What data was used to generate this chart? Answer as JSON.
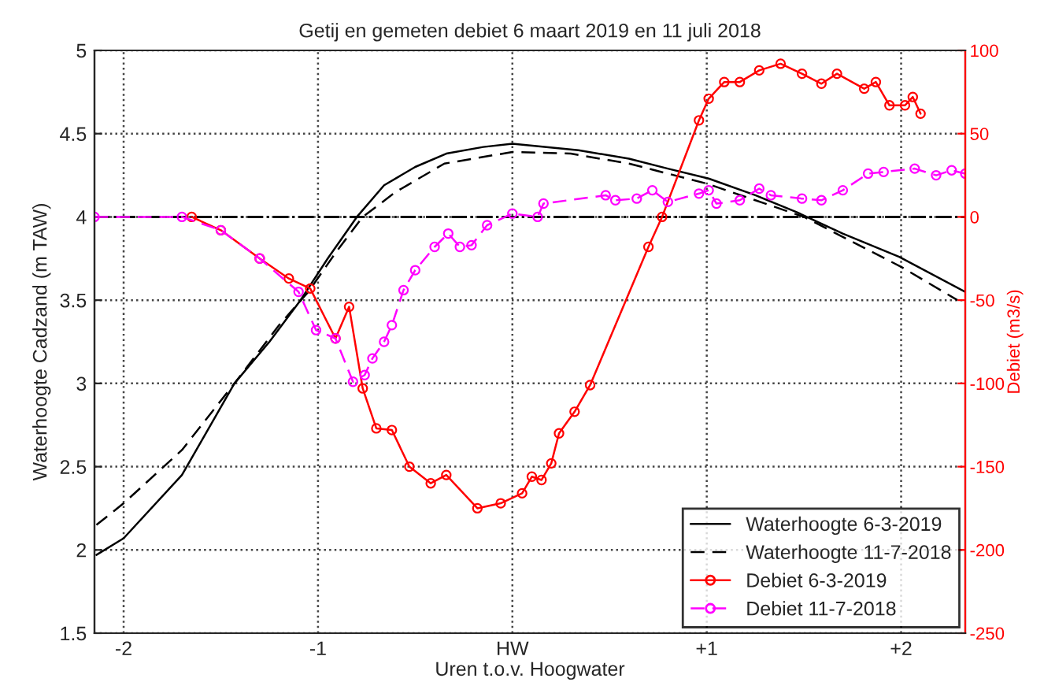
{
  "chart_data": {
    "type": "line",
    "title": "Getij en gemeten debiet 6 maart 2019 en 11 juli 2018",
    "xlabel": "Uren t.o.v. Hoogwater",
    "ylabel": "Waterhoogte Cadzand (m TAW)",
    "y2label": "Debiet (m3/s)",
    "xlim": [
      -2.15,
      2.33
    ],
    "xticks": [
      {
        "value": -2,
        "label": "-2"
      },
      {
        "value": -1,
        "label": "-1"
      },
      {
        "value": 0,
        "label": "HW"
      },
      {
        "value": 1,
        "label": "+1"
      },
      {
        "value": 2,
        "label": "+2"
      }
    ],
    "ylim": [
      1.5,
      5
    ],
    "yticks": [
      1.5,
      2,
      2.5,
      3,
      3.5,
      4,
      4.5,
      5
    ],
    "y2lim": [
      -250,
      100
    ],
    "y2ticks": [
      -250,
      -200,
      -150,
      -100,
      -50,
      0,
      50,
      100
    ],
    "grid": true,
    "legend": "bottom right",
    "ref_lines": [
      {
        "axis": "y",
        "value": 4,
        "color": "#000000",
        "line_style": "dashdot"
      }
    ],
    "series": [
      {
        "name": "Waterhoogte 6-3-2019",
        "color": "#000000",
        "line_style": "solid",
        "marker": "none",
        "x": [
          -2.14,
          -2.0,
          -1.7,
          -1.43,
          -1.25,
          -1.09,
          -0.95,
          -0.8,
          -0.66,
          -0.5,
          -0.34,
          -0.15,
          0,
          0.34,
          0.6,
          0.8,
          1.01,
          1.25,
          1.46,
          1.7,
          1.99,
          2.33
        ],
        "values": [
          1.97,
          2.07,
          2.45,
          3.0,
          3.25,
          3.5,
          3.75,
          4.0,
          4.19,
          4.3,
          4.38,
          4.42,
          4.44,
          4.4,
          4.35,
          4.29,
          4.23,
          4.13,
          4.03,
          3.9,
          3.76,
          3.55
        ]
      },
      {
        "name": "Waterhoogte 11-7-2018",
        "color": "#000000",
        "line_style": "dashed",
        "marker": "none",
        "x": [
          -2.14,
          -2.0,
          -1.7,
          -1.43,
          -1.2,
          -1.05,
          -0.9,
          -0.77,
          -0.6,
          -0.35,
          0,
          0.3,
          0.6,
          0.8,
          1.0,
          1.25,
          1.5,
          1.75,
          2.0,
          2.29
        ],
        "values": [
          2.15,
          2.28,
          2.6,
          3.0,
          3.35,
          3.55,
          3.8,
          4.0,
          4.15,
          4.32,
          4.39,
          4.38,
          4.32,
          4.26,
          4.2,
          4.1,
          4.0,
          3.85,
          3.7,
          3.5
        ]
      },
      {
        "name": "Debiet 6-3-2019",
        "color": "#ff0000",
        "axis": "y2",
        "line_style": "solid",
        "marker": "circle",
        "x": [
          -1.65,
          -1.5,
          -1.3,
          -1.15,
          -1.04,
          -0.91,
          -0.84,
          -0.77,
          -0.7,
          -0.62,
          -0.53,
          -0.42,
          -0.34,
          -0.18,
          -0.06,
          0.05,
          0.1,
          0.15,
          0.2,
          0.24,
          0.32,
          0.4,
          0.7,
          0.77,
          0.96,
          1.01,
          1.09,
          1.17,
          1.27,
          1.38,
          1.49,
          1.59,
          1.67,
          1.81,
          1.87,
          1.94,
          2.02,
          2.06,
          2.1
        ],
        "values": [
          0,
          -8,
          -25,
          -37,
          -43,
          -73,
          -54,
          -103,
          -127,
          -128,
          -150,
          -160,
          -155,
          -175,
          -172,
          -166,
          -156,
          -158,
          -148,
          -130,
          -117,
          -101,
          -18,
          0,
          58,
          71,
          81,
          81,
          88,
          92,
          86,
          80,
          86,
          77,
          81,
          67,
          67,
          72,
          62
        ]
      },
      {
        "name": "Debiet 11-7-2018",
        "color": "#ff00ff",
        "axis": "y2",
        "line_style": "dashed",
        "marker": "circle",
        "x": [
          -2.15,
          -1.7,
          -1.5,
          -1.3,
          -1.1,
          -1.01,
          -0.91,
          -0.82,
          -0.76,
          -0.72,
          -0.66,
          -0.62,
          -0.56,
          -0.5,
          -0.4,
          -0.33,
          -0.27,
          -0.21,
          -0.13,
          0,
          0.13,
          0.16,
          0.48,
          0.53,
          0.64,
          0.72,
          0.8,
          0.96,
          1.01,
          1.05,
          1.17,
          1.27,
          1.33,
          1.49,
          1.59,
          1.7,
          1.83,
          1.91,
          2.07,
          2.18,
          2.26,
          2.33
        ],
        "values": [
          0,
          0,
          -8,
          -25,
          -45,
          -68,
          -73,
          -99,
          -95,
          -85,
          -75,
          -65,
          -44,
          -32,
          -18,
          -10,
          -18,
          -17,
          -5,
          2,
          0,
          8,
          13,
          10,
          11,
          16,
          9,
          14,
          16,
          8,
          10,
          17,
          13,
          11,
          10,
          16,
          26,
          27,
          29,
          25,
          28,
          26
        ]
      }
    ]
  }
}
